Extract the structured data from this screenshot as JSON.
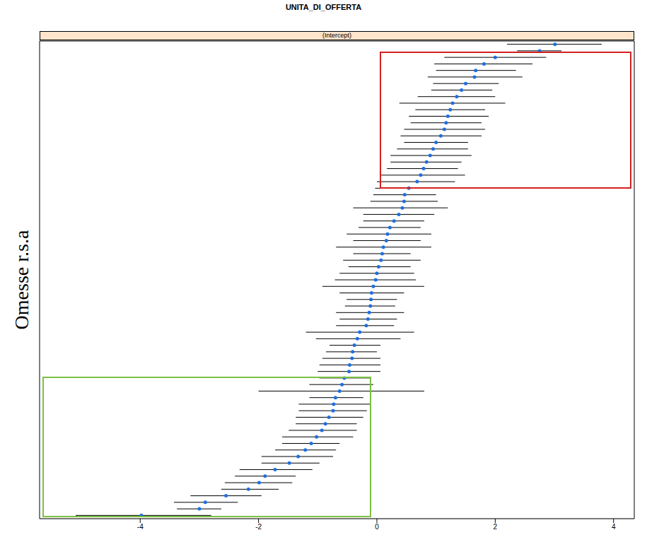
{
  "chart_data": {
    "type": "scatter",
    "title": "UNITA_DI_OFFERTA",
    "subtitle": "(Intercept)",
    "ylabel": "Omesse r.s.a",
    "tick_labels": "x",
    "grid": true,
    "marker": "circle",
    "color": "#1f6fe0",
    "xlim": [
      -5.7,
      4.35
    ],
    "xticks": [
      -4,
      -2,
      0,
      2,
      4
    ],
    "values": [
      3.01,
      2.75,
      2.0,
      1.81,
      1.67,
      1.65,
      1.5,
      1.43,
      1.35,
      1.28,
      1.24,
      1.2,
      1.17,
      1.14,
      1.08,
      1.0,
      0.95,
      0.9,
      0.84,
      0.79,
      0.74,
      0.68,
      0.54,
      0.47,
      0.46,
      0.43,
      0.37,
      0.29,
      0.22,
      0.18,
      0.16,
      0.11,
      0.09,
      0.07,
      0.03,
      0,
      -0.02,
      -0.06,
      -0.09,
      -0.1,
      -0.11,
      -0.13,
      -0.15,
      -0.18,
      -0.29,
      -0.33,
      -0.38,
      -0.41,
      -0.42,
      -0.46,
      -0.47,
      -0.55,
      -0.59,
      -0.63,
      -0.7,
      -0.73,
      -0.74,
      -0.81,
      -0.87,
      -0.93,
      -1.02,
      -1.11,
      -1.21,
      -1.33,
      -1.48,
      -1.72,
      -1.89,
      -1.99,
      -2.17,
      -2.55,
      -2.9,
      -3.0,
      -3.98
    ],
    "lower": [
      2.2,
      2.37,
      1.14,
      0.97,
      1.0,
      0.86,
      0.95,
      0.92,
      0.69,
      0.38,
      0.65,
      0.54,
      0.57,
      0.46,
      0.4,
      0.46,
      0.34,
      0.23,
      0.23,
      0.17,
      0.06,
      0,
      -0.03,
      -0.06,
      -0.11,
      -0.4,
      -0.23,
      -0.23,
      -0.31,
      -0.51,
      -0.4,
      -0.69,
      -0.4,
      -0.57,
      -0.48,
      -0.63,
      -0.71,
      -0.92,
      -0.63,
      -0.51,
      -0.54,
      -0.69,
      -0.63,
      -0.69,
      -1.2,
      -1.03,
      -0.8,
      -0.86,
      -0.92,
      -0.97,
      -1.0,
      -0.97,
      -1.14,
      -2.0,
      -1.14,
      -1.32,
      -1.32,
      -1.37,
      -1.37,
      -1.49,
      -1.6,
      -1.6,
      -1.72,
      -1.95,
      -1.95,
      -2.32,
      -2.4,
      -2.57,
      -2.63,
      -3.15,
      -3.43,
      -3.38,
      -5.09
    ],
    "upper": [
      3.8,
      3.12,
      2.86,
      2.63,
      2.35,
      2.46,
      2.06,
      1.95,
      2.0,
      2.17,
      1.83,
      1.89,
      1.77,
      1.83,
      1.77,
      1.54,
      1.54,
      1.6,
      1.43,
      1.37,
      1.49,
      1.32,
      1.09,
      1.0,
      1.03,
      1.2,
      0.97,
      0.8,
      0.74,
      0.92,
      0.74,
      0.92,
      0.57,
      0.74,
      0.57,
      0.63,
      0.66,
      0.8,
      0.46,
      0.34,
      0.31,
      0.46,
      0.34,
      0.29,
      0.63,
      0.4,
      0.06,
      0,
      0.06,
      0.06,
      0.06,
      -0.11,
      -0.06,
      0.8,
      -0.23,
      -0.11,
      -0.17,
      -0.23,
      -0.34,
      -0.34,
      -0.4,
      -0.63,
      -0.69,
      -0.74,
      -0.97,
      -1.09,
      -1.37,
      -1.43,
      -1.66,
      -1.95,
      -2.35,
      -2.63,
      -2.8
    ]
  }
}
